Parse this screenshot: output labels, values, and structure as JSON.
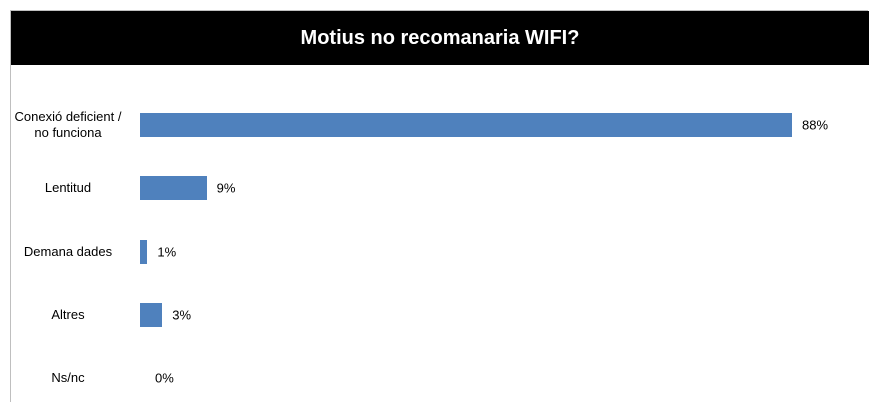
{
  "chart_data": {
    "type": "bar",
    "orientation": "horizontal",
    "title": "Motius no recomanaria WIFI?",
    "categories": [
      "Conexió deficient / no funciona",
      "Lentitud",
      "Demana dades",
      "Altres",
      "Ns/nc"
    ],
    "values": [
      88,
      9,
      1,
      3,
      0
    ],
    "value_labels": [
      "88%",
      "9%",
      "1%",
      "3%",
      "0%"
    ],
    "color": "#4f81bd"
  }
}
